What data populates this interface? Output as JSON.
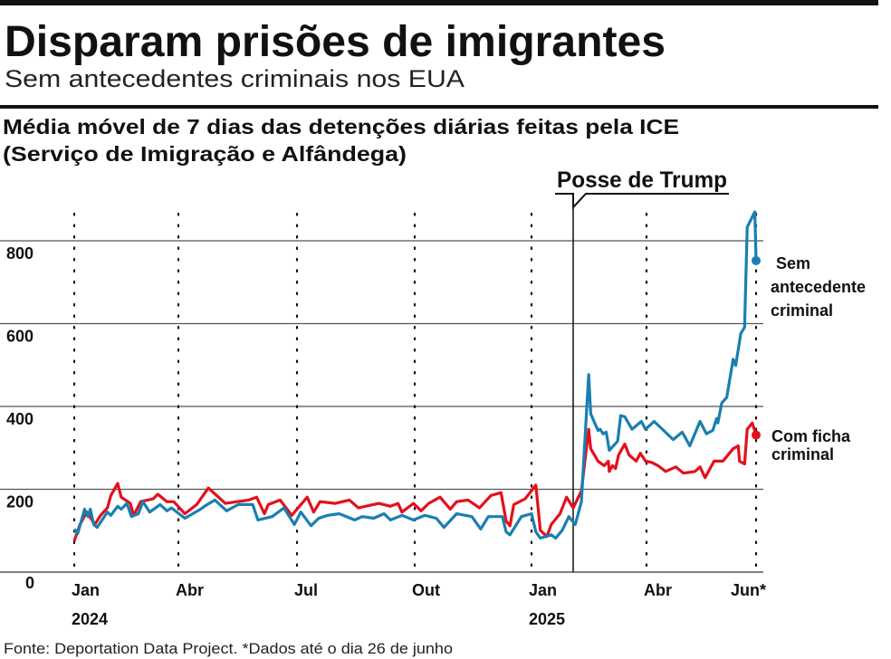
{
  "header": {
    "title": "Disparam prisões de imigrantes",
    "subtitle": "Sem antecedentes criminais nos EUA"
  },
  "chart_data": {
    "type": "line",
    "title_line1": "Média móvel de 7 dias das detenções diárias feitas pela ICE",
    "title_line2": "(Serviço de Imigração e Alfândega)",
    "ylim": [
      0,
      900
    ],
    "yticks": [
      {
        "value": 0,
        "label": "0"
      },
      {
        "value": 200,
        "label": "200"
      },
      {
        "value": 400,
        "label": "400"
      },
      {
        "value": 600,
        "label": "600"
      },
      {
        "value": 800,
        "label": "800"
      }
    ],
    "xlim": [
      "2024-01-01",
      "2025-06-26"
    ],
    "xticks": [
      {
        "date": "2024-01-01",
        "label": "Jan",
        "year": "2024"
      },
      {
        "date": "2024-04-01",
        "label": "Abr"
      },
      {
        "date": "2024-07-01",
        "label": "Jul"
      },
      {
        "date": "2024-10-01",
        "label": "Out"
      },
      {
        "date": "2025-01-01",
        "label": "Jan",
        "year": "2025"
      },
      {
        "date": "2025-04-01",
        "label": "Abr"
      },
      {
        "date": "2025-06-26",
        "label": "Jun*"
      }
    ],
    "grid": "horizontal solid, vertical dotted",
    "annotation": {
      "date": "2025-01-20",
      "label": "Posse de Trump"
    },
    "series": [
      {
        "name": "Sem antecedente criminal",
        "name_lines": [
          "Sem",
          "antecedente",
          "criminal"
        ],
        "color": "#1a7fb0",
        "points": [
          [
            "2024-01-01",
            104
          ],
          [
            "2024-01-04",
            93
          ],
          [
            "2024-01-10",
            152
          ],
          [
            "2024-01-13",
            134
          ],
          [
            "2024-01-15",
            152
          ],
          [
            "2024-01-18",
            115
          ],
          [
            "2024-01-21",
            108
          ],
          [
            "2024-01-30",
            145
          ],
          [
            "2024-02-02",
            137
          ],
          [
            "2024-02-08",
            159
          ],
          [
            "2024-02-11",
            152
          ],
          [
            "2024-02-16",
            166
          ],
          [
            "2024-02-20",
            134
          ],
          [
            "2024-02-26",
            141
          ],
          [
            "2024-03-01",
            170
          ],
          [
            "2024-03-07",
            145
          ],
          [
            "2024-03-16",
            163
          ],
          [
            "2024-03-22",
            148
          ],
          [
            "2024-03-26",
            155
          ],
          [
            "2024-04-06",
            130
          ],
          [
            "2024-04-18",
            152
          ],
          [
            "2024-04-21",
            159
          ],
          [
            "2024-04-29",
            174
          ],
          [
            "2024-05-08",
            148
          ],
          [
            "2024-05-17",
            163
          ],
          [
            "2024-05-28",
            163
          ],
          [
            "2024-06-01",
            126
          ],
          [
            "2024-06-12",
            134
          ],
          [
            "2024-06-21",
            155
          ],
          [
            "2024-06-29",
            115
          ],
          [
            "2024-07-04",
            145
          ],
          [
            "2024-07-12",
            112
          ],
          [
            "2024-07-18",
            130
          ],
          [
            "2024-07-25",
            137
          ],
          [
            "2024-08-03",
            141
          ],
          [
            "2024-08-15",
            126
          ],
          [
            "2024-08-21",
            134
          ],
          [
            "2024-08-30",
            130
          ],
          [
            "2024-09-07",
            141
          ],
          [
            "2024-09-12",
            126
          ],
          [
            "2024-09-21",
            137
          ],
          [
            "2024-09-30",
            126
          ],
          [
            "2024-10-09",
            137
          ],
          [
            "2024-10-18",
            130
          ],
          [
            "2024-10-24",
            108
          ],
          [
            "2024-11-03",
            141
          ],
          [
            "2024-11-15",
            134
          ],
          [
            "2024-11-22",
            104
          ],
          [
            "2024-11-28",
            134
          ],
          [
            "2024-12-09",
            134
          ],
          [
            "2024-12-12",
            97
          ],
          [
            "2024-12-15",
            90
          ],
          [
            "2024-12-24",
            134
          ],
          [
            "2025-01-01",
            141
          ],
          [
            "2025-01-03",
            97
          ],
          [
            "2025-01-05",
            82
          ],
          [
            "2025-01-10",
            90
          ],
          [
            "2025-01-12",
            82
          ],
          [
            "2025-01-15",
            101
          ],
          [
            "2025-01-18",
            134
          ],
          [
            "2025-01-22",
            115
          ],
          [
            "2025-01-28",
            170
          ],
          [
            "2025-02-04",
            477
          ],
          [
            "2025-02-06",
            382
          ],
          [
            "2025-02-13",
            342
          ],
          [
            "2025-02-15",
            345
          ],
          [
            "2025-02-18",
            334
          ],
          [
            "2025-02-21",
            338
          ],
          [
            "2025-02-24",
            294
          ],
          [
            "2025-03-04",
            316
          ],
          [
            "2025-03-07",
            378
          ],
          [
            "2025-03-11",
            375
          ],
          [
            "2025-03-18",
            345
          ],
          [
            "2025-03-27",
            364
          ],
          [
            "2025-03-31",
            345
          ],
          [
            "2025-04-07",
            364
          ],
          [
            "2025-04-22",
            320
          ],
          [
            "2025-04-29",
            338
          ],
          [
            "2025-05-05",
            305
          ],
          [
            "2025-05-13",
            364
          ],
          [
            "2025-05-18",
            334
          ],
          [
            "2025-05-23",
            342
          ],
          [
            "2025-05-26",
            371
          ],
          [
            "2025-05-27",
            360
          ],
          [
            "2025-05-30",
            408
          ],
          [
            "2025-06-03",
            422
          ],
          [
            "2025-06-08",
            514
          ],
          [
            "2025-06-10",
            499
          ],
          [
            "2025-06-14",
            576
          ],
          [
            "2025-06-17",
            591
          ],
          [
            "2025-06-19",
            833
          ],
          [
            "2025-06-25",
            870
          ],
          [
            "2025-06-26",
            752
          ]
        ]
      },
      {
        "name": "Com ficha criminal",
        "name_lines": [
          "Com ficha",
          "criminal"
        ],
        "color": "#e3111b",
        "points": [
          [
            "2024-01-01",
            75
          ],
          [
            "2024-01-06",
            115
          ],
          [
            "2024-01-12",
            145
          ],
          [
            "2024-01-19",
            115
          ],
          [
            "2024-01-24",
            137
          ],
          [
            "2024-01-30",
            155
          ],
          [
            "2024-02-02",
            185
          ],
          [
            "2024-02-08",
            214
          ],
          [
            "2024-02-11",
            181
          ],
          [
            "2024-02-19",
            166
          ],
          [
            "2024-02-22",
            137
          ],
          [
            "2024-02-28",
            170
          ],
          [
            "2024-03-10",
            177
          ],
          [
            "2024-03-14",
            188
          ],
          [
            "2024-03-22",
            170
          ],
          [
            "2024-03-28",
            170
          ],
          [
            "2024-04-06",
            141
          ],
          [
            "2024-04-15",
            163
          ],
          [
            "2024-04-24",
            203
          ],
          [
            "2024-05-07",
            166
          ],
          [
            "2024-05-16",
            170
          ],
          [
            "2024-05-25",
            174
          ],
          [
            "2024-05-31",
            181
          ],
          [
            "2024-06-06",
            141
          ],
          [
            "2024-06-09",
            163
          ],
          [
            "2024-06-18",
            174
          ],
          [
            "2024-06-27",
            137
          ],
          [
            "2024-07-09",
            181
          ],
          [
            "2024-07-14",
            145
          ],
          [
            "2024-07-19",
            170
          ],
          [
            "2024-07-31",
            166
          ],
          [
            "2024-08-11",
            174
          ],
          [
            "2024-08-18",
            155
          ],
          [
            "2024-09-03",
            166
          ],
          [
            "2024-09-12",
            159
          ],
          [
            "2024-09-18",
            166
          ],
          [
            "2024-09-21",
            145
          ],
          [
            "2024-09-30",
            166
          ],
          [
            "2024-10-06",
            148
          ],
          [
            "2024-10-12",
            166
          ],
          [
            "2024-10-21",
            181
          ],
          [
            "2024-10-29",
            152
          ],
          [
            "2024-11-03",
            170
          ],
          [
            "2024-11-12",
            174
          ],
          [
            "2024-11-21",
            155
          ],
          [
            "2024-11-30",
            185
          ],
          [
            "2024-12-08",
            192
          ],
          [
            "2024-12-12",
            123
          ],
          [
            "2024-12-15",
            112
          ],
          [
            "2024-12-18",
            163
          ],
          [
            "2024-12-27",
            177
          ],
          [
            "2025-01-03",
            210
          ],
          [
            "2025-01-05",
            101
          ],
          [
            "2025-01-08",
            86
          ],
          [
            "2025-01-10",
            115
          ],
          [
            "2025-01-14",
            141
          ],
          [
            "2025-01-17",
            181
          ],
          [
            "2025-01-20",
            155
          ],
          [
            "2025-01-28",
            196
          ],
          [
            "2025-02-04",
            345
          ],
          [
            "2025-02-06",
            298
          ],
          [
            "2025-02-13",
            268
          ],
          [
            "2025-02-19",
            257
          ],
          [
            "2025-02-23",
            268
          ],
          [
            "2025-02-24",
            243
          ],
          [
            "2025-02-27",
            257
          ],
          [
            "2025-03-02",
            250
          ],
          [
            "2025-03-05",
            283
          ],
          [
            "2025-03-11",
            309
          ],
          [
            "2025-03-15",
            283
          ],
          [
            "2025-03-22",
            268
          ],
          [
            "2025-03-26",
            287
          ],
          [
            "2025-03-31",
            268
          ],
          [
            "2025-04-05",
            265
          ],
          [
            "2025-04-10",
            257
          ],
          [
            "2025-04-16",
            243
          ],
          [
            "2025-04-24",
            254
          ],
          [
            "2025-04-30",
            239
          ],
          [
            "2025-05-09",
            243
          ],
          [
            "2025-05-13",
            254
          ],
          [
            "2025-05-17",
            228
          ],
          [
            "2025-05-24",
            268
          ],
          [
            "2025-05-31",
            268
          ],
          [
            "2025-06-08",
            298
          ],
          [
            "2025-06-12",
            305
          ],
          [
            "2025-06-13",
            268
          ],
          [
            "2025-06-17",
            261
          ],
          [
            "2025-06-19",
            345
          ],
          [
            "2025-06-23",
            360
          ],
          [
            "2025-06-26",
            331
          ]
        ]
      }
    ]
  },
  "footer": {
    "source": "Fonte: Deportation Data Project.  *Dados até o dia 26 de junho"
  }
}
